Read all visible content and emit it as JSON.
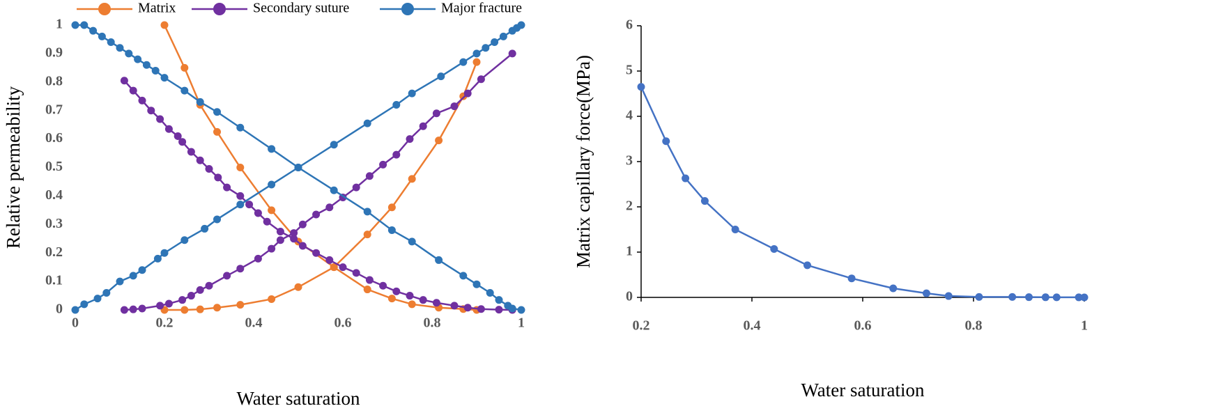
{
  "chart_data": [
    {
      "type": "line",
      "xlabel": "Water saturation",
      "ylabel": "Relative permeability",
      "xlim": [
        0,
        1
      ],
      "xticks": [
        0,
        0.2,
        0.4,
        0.6,
        0.8,
        1
      ],
      "ylim": [
        0,
        1
      ],
      "yticks": [
        0,
        0.1,
        0.2,
        0.3,
        0.4,
        0.5,
        0.6,
        0.7,
        0.8,
        0.9,
        1
      ],
      "legend": "top",
      "series": [
        {
          "name": "Matrix",
          "color": "#ED7D31",
          "curves": [
            {
              "x": [
                0.2,
                0.245,
                0.28,
                0.318,
                0.37,
                0.44,
                0.5,
                0.58,
                0.655,
                0.71,
                0.755,
                0.815,
                0.87,
                0.9
              ],
              "values": [
                1,
                0.85,
                0.72,
                0.625,
                0.5,
                0.35,
                0.24,
                0.15,
                0.072,
                0.04,
                0.02,
                0.008,
                0.003,
                0
              ]
            },
            {
              "x": [
                0.2,
                0.245,
                0.28,
                0.318,
                0.37,
                0.44,
                0.5,
                0.58,
                0.655,
                0.71,
                0.755,
                0.815,
                0.87,
                0.9
              ],
              "values": [
                0,
                0,
                0.002,
                0.008,
                0.018,
                0.038,
                0.08,
                0.15,
                0.265,
                0.36,
                0.46,
                0.595,
                0.75,
                0.87
              ]
            }
          ]
        },
        {
          "name": "Secondary suture",
          "color": "#7030A0",
          "curves": [
            {
              "x": [
                0.11,
                0.13,
                0.15,
                0.17,
                0.19,
                0.21,
                0.23,
                0.24,
                0.26,
                0.28,
                0.3,
                0.32,
                0.34,
                0.37,
                0.39,
                0.41,
                0.43,
                0.46,
                0.49,
                0.51,
                0.54,
                0.57,
                0.6,
                0.63,
                0.66,
                0.69,
                0.72,
                0.75,
                0.78,
                0.81,
                0.85,
                0.88,
                0.91,
                0.95,
                0.98
              ],
              "values": [
                0.805,
                0.77,
                0.735,
                0.7,
                0.67,
                0.635,
                0.61,
                0.59,
                0.555,
                0.525,
                0.495,
                0.465,
                0.43,
                0.4,
                0.37,
                0.34,
                0.31,
                0.275,
                0.25,
                0.225,
                0.2,
                0.175,
                0.15,
                0.13,
                0.105,
                0.085,
                0.065,
                0.05,
                0.035,
                0.025,
                0.015,
                0.008,
                0.003,
                0.001,
                0
              ]
            },
            {
              "x": [
                0.11,
                0.13,
                0.15,
                0.19,
                0.21,
                0.24,
                0.26,
                0.28,
                0.3,
                0.34,
                0.37,
                0.41,
                0.44,
                0.46,
                0.49,
                0.51,
                0.54,
                0.57,
                0.6,
                0.63,
                0.66,
                0.69,
                0.72,
                0.75,
                0.78,
                0.81,
                0.85,
                0.88,
                0.91,
                0.98
              ],
              "values": [
                0,
                0.002,
                0.005,
                0.015,
                0.022,
                0.035,
                0.05,
                0.07,
                0.085,
                0.12,
                0.145,
                0.18,
                0.215,
                0.245,
                0.27,
                0.3,
                0.335,
                0.36,
                0.395,
                0.43,
                0.47,
                0.51,
                0.545,
                0.6,
                0.645,
                0.69,
                0.715,
                0.76,
                0.81,
                0.9
              ]
            }
          ]
        },
        {
          "name": "Major fracture",
          "color": "#2E75B6",
          "curves": [
            {
              "x": [
                0,
                0.02,
                0.04,
                0.06,
                0.08,
                0.1,
                0.12,
                0.14,
                0.16,
                0.18,
                0.2,
                0.245,
                0.28,
                0.318,
                0.37,
                0.44,
                0.5,
                0.58,
                0.655,
                0.71,
                0.755,
                0.815,
                0.87,
                0.9,
                0.93,
                0.95,
                0.97,
                0.98,
                1
              ],
              "values": [
                1,
                1,
                0.98,
                0.96,
                0.94,
                0.92,
                0.9,
                0.88,
                0.86,
                0.84,
                0.815,
                0.77,
                0.73,
                0.695,
                0.64,
                0.565,
                0.5,
                0.42,
                0.345,
                0.28,
                0.24,
                0.175,
                0.12,
                0.09,
                0.06,
                0.035,
                0.015,
                0.005,
                0
              ]
            },
            {
              "x": [
                0,
                0.02,
                0.05,
                0.07,
                0.1,
                0.13,
                0.15,
                0.185,
                0.2,
                0.245,
                0.29,
                0.318,
                0.37,
                0.44,
                0.5,
                0.58,
                0.655,
                0.72,
                0.755,
                0.82,
                0.87,
                0.9,
                0.92,
                0.94,
                0.96,
                0.98,
                0.99,
                1
              ],
              "values": [
                0,
                0.02,
                0.04,
                0.06,
                0.1,
                0.12,
                0.14,
                0.18,
                0.2,
                0.245,
                0.285,
                0.318,
                0.37,
                0.44,
                0.5,
                0.58,
                0.655,
                0.72,
                0.76,
                0.82,
                0.87,
                0.9,
                0.92,
                0.94,
                0.96,
                0.98,
                0.99,
                1
              ]
            }
          ]
        }
      ]
    },
    {
      "type": "line",
      "xlabel": "Water saturation",
      "ylabel": "Matrix capillary force(MPa)",
      "xlim": [
        0.2,
        1
      ],
      "xticks": [
        0.2,
        0.4,
        0.6,
        0.8,
        1
      ],
      "ylim": [
        0,
        6
      ],
      "yticks": [
        0,
        1,
        2,
        3,
        4,
        5,
        6
      ],
      "series": [
        {
          "color": "#4472C4",
          "curves": [
            {
              "x": [
                0.2,
                0.245,
                0.28,
                0.315,
                0.37,
                0.44,
                0.5,
                0.58,
                0.655,
                0.715,
                0.755,
                0.81,
                0.87,
                0.9,
                0.93,
                0.95,
                0.99,
                1
              ],
              "values": [
                4.65,
                3.45,
                2.63,
                2.13,
                1.5,
                1.07,
                0.71,
                0.42,
                0.2,
                0.09,
                0.03,
                0.01,
                0.01,
                0.005,
                0.003,
                0.002,
                0.001,
                0
              ]
            }
          ]
        }
      ]
    }
  ]
}
